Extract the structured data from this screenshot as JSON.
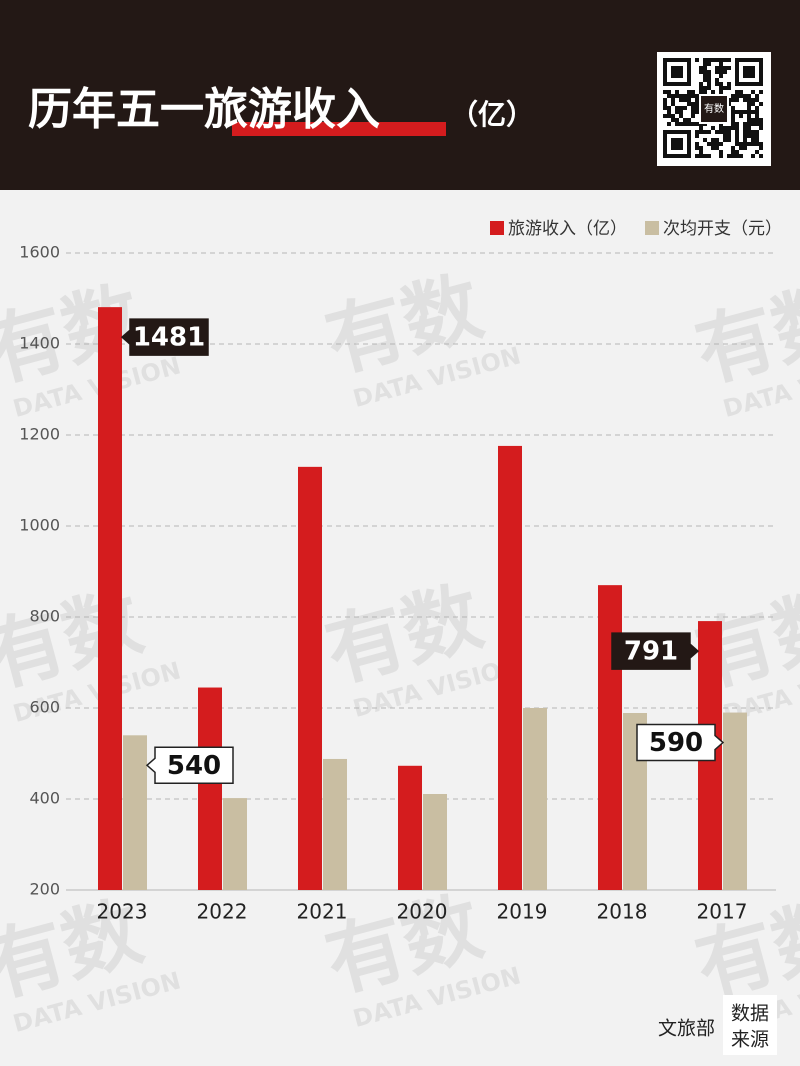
{
  "chart_data": {
    "type": "bar",
    "title": "历年五一旅游收入",
    "title_unit": "（亿）",
    "categories": [
      "2023",
      "2022",
      "2021",
      "2020",
      "2019",
      "2018",
      "2017"
    ],
    "series": [
      {
        "name": "旅游收入（亿）",
        "color": "#d41c1e",
        "values": [
          1481,
          645,
          1130,
          473,
          1176,
          870,
          791
        ],
        "show_labels": [
          true,
          false,
          false,
          false,
          false,
          false,
          true
        ]
      },
      {
        "name": "次均开支（元）",
        "color": "#c9bea2",
        "values": [
          540,
          402,
          488,
          411,
          600,
          589,
          590
        ],
        "show_labels": [
          true,
          false,
          false,
          false,
          false,
          false,
          true
        ]
      }
    ],
    "ylim": [
      200,
      1600
    ],
    "yticks": [
      200,
      400,
      600,
      800,
      1000,
      1200,
      1400,
      1600
    ],
    "grid": true,
    "legend": "top-right",
    "source_label": [
      "数据",
      "来源"
    ],
    "source": "文旅部",
    "qr_logo": "有数",
    "watermark": {
      "logo": "有数",
      "text": "DATA VISION"
    }
  }
}
